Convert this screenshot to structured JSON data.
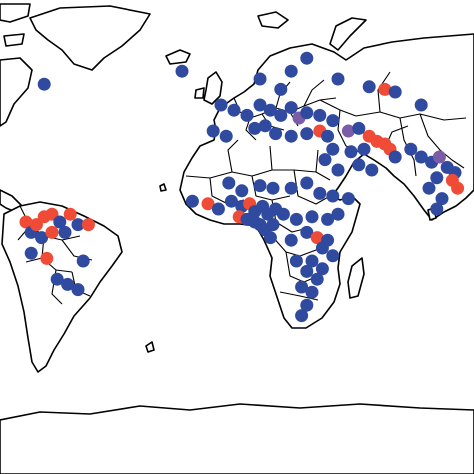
{
  "map": {
    "type": "world-outline-point-map",
    "colors": {
      "background": "#ffffff",
      "outline": "#000000",
      "blue": "#2f4a9e",
      "red": "#ef4b36",
      "purple": "#7a5ca8"
    },
    "points": [
      {
        "lon": -73,
        "lat": 58,
        "color": "blue"
      },
      {
        "lon": -20,
        "lat": 63,
        "color": "blue"
      },
      {
        "lon": 10,
        "lat": 60,
        "color": "blue"
      },
      {
        "lon": 18,
        "lat": 56,
        "color": "blue"
      },
      {
        "lon": 22,
        "lat": 63,
        "color": "blue"
      },
      {
        "lon": 28,
        "lat": 68,
        "color": "blue"
      },
      {
        "lon": 40,
        "lat": 60,
        "color": "blue"
      },
      {
        "lon": 52,
        "lat": 57,
        "color": "blue"
      },
      {
        "lon": 58,
        "lat": 56,
        "color": "red"
      },
      {
        "lon": 62,
        "lat": 55,
        "color": "blue"
      },
      {
        "lon": 72,
        "lat": 50,
        "color": "blue"
      },
      {
        "lon": -5,
        "lat": 50,
        "color": "blue"
      },
      {
        "lon": 0,
        "lat": 48,
        "color": "blue"
      },
      {
        "lon": 5,
        "lat": 46,
        "color": "blue"
      },
      {
        "lon": 10,
        "lat": 50,
        "color": "blue"
      },
      {
        "lon": 14,
        "lat": 48,
        "color": "blue"
      },
      {
        "lon": 18,
        "lat": 46,
        "color": "blue"
      },
      {
        "lon": 22,
        "lat": 49,
        "color": "blue"
      },
      {
        "lon": 25,
        "lat": 45,
        "color": "purple"
      },
      {
        "lon": 28,
        "lat": 47,
        "color": "blue"
      },
      {
        "lon": 33,
        "lat": 46,
        "color": "blue"
      },
      {
        "lon": 38,
        "lat": 44,
        "color": "blue"
      },
      {
        "lon": -8,
        "lat": 40,
        "color": "blue"
      },
      {
        "lon": -3,
        "lat": 38,
        "color": "blue"
      },
      {
        "lon": 8,
        "lat": 41,
        "color": "blue"
      },
      {
        "lon": 12,
        "lat": 42,
        "color": "blue"
      },
      {
        "lon": 16,
        "lat": 39,
        "color": "blue"
      },
      {
        "lon": 22,
        "lat": 38,
        "color": "blue"
      },
      {
        "lon": 28,
        "lat": 39,
        "color": "blue"
      },
      {
        "lon": 33,
        "lat": 40,
        "color": "red"
      },
      {
        "lon": 36,
        "lat": 38,
        "color": "blue"
      },
      {
        "lon": 44,
        "lat": 40,
        "color": "purple"
      },
      {
        "lon": 48,
        "lat": 41,
        "color": "blue"
      },
      {
        "lon": 52,
        "lat": 38,
        "color": "red"
      },
      {
        "lon": 55,
        "lat": 36,
        "color": "red"
      },
      {
        "lon": 58,
        "lat": 35,
        "color": "red"
      },
      {
        "lon": 60,
        "lat": 33,
        "color": "red"
      },
      {
        "lon": 50,
        "lat": 33,
        "color": "blue"
      },
      {
        "lon": 45,
        "lat": 32,
        "color": "blue"
      },
      {
        "lon": 38,
        "lat": 33,
        "color": "blue"
      },
      {
        "lon": 35,
        "lat": 29,
        "color": "blue"
      },
      {
        "lon": 40,
        "lat": 25,
        "color": "blue"
      },
      {
        "lon": 48,
        "lat": 27,
        "color": "blue"
      },
      {
        "lon": 53,
        "lat": 25,
        "color": "blue"
      },
      {
        "lon": 62,
        "lat": 30,
        "color": "blue"
      },
      {
        "lon": 68,
        "lat": 33,
        "color": "blue"
      },
      {
        "lon": 72,
        "lat": 30,
        "color": "blue"
      },
      {
        "lon": 76,
        "lat": 28,
        "color": "blue"
      },
      {
        "lon": 79,
        "lat": 30,
        "color": "purple"
      },
      {
        "lon": 82,
        "lat": 26,
        "color": "blue"
      },
      {
        "lon": 85,
        "lat": 24,
        "color": "blue"
      },
      {
        "lon": 78,
        "lat": 22,
        "color": "blue"
      },
      {
        "lon": 84,
        "lat": 21,
        "color": "red"
      },
      {
        "lon": 86,
        "lat": 18,
        "color": "red"
      },
      {
        "lon": 75,
        "lat": 18,
        "color": "blue"
      },
      {
        "lon": 80,
        "lat": 14,
        "color": "blue"
      },
      {
        "lon": 78,
        "lat": 10,
        "color": "blue"
      },
      {
        "lon": -2,
        "lat": 20,
        "color": "blue"
      },
      {
        "lon": 3,
        "lat": 17,
        "color": "blue"
      },
      {
        "lon": 10,
        "lat": 19,
        "color": "blue"
      },
      {
        "lon": 15,
        "lat": 18,
        "color": "blue"
      },
      {
        "lon": 22,
        "lat": 18,
        "color": "blue"
      },
      {
        "lon": 28,
        "lat": 20,
        "color": "blue"
      },
      {
        "lon": 33,
        "lat": 16,
        "color": "blue"
      },
      {
        "lon": 38,
        "lat": 15,
        "color": "blue"
      },
      {
        "lon": 44,
        "lat": 14,
        "color": "blue"
      },
      {
        "lon": -16,
        "lat": 13,
        "color": "blue"
      },
      {
        "lon": -10,
        "lat": 12,
        "color": "red"
      },
      {
        "lon": -6,
        "lat": 10,
        "color": "blue"
      },
      {
        "lon": -1,
        "lat": 13,
        "color": "blue"
      },
      {
        "lon": 3,
        "lat": 11,
        "color": "blue"
      },
      {
        "lon": 6,
        "lat": 12,
        "color": "red"
      },
      {
        "lon": 8,
        "lat": 9,
        "color": "blue"
      },
      {
        "lon": 11,
        "lat": 11,
        "color": "blue"
      },
      {
        "lon": 13,
        "lat": 8,
        "color": "blue"
      },
      {
        "lon": 16,
        "lat": 10,
        "color": "blue"
      },
      {
        "lon": 19,
        "lat": 8,
        "color": "blue"
      },
      {
        "lon": 2,
        "lat": 7,
        "color": "red"
      },
      {
        "lon": 5,
        "lat": 6,
        "color": "blue"
      },
      {
        "lon": 8,
        "lat": 5,
        "color": "blue"
      },
      {
        "lon": 10,
        "lat": 4,
        "color": "blue"
      },
      {
        "lon": 12,
        "lat": 2,
        "color": "blue"
      },
      {
        "lon": 15,
        "lat": 4,
        "color": "blue"
      },
      {
        "lon": 24,
        "lat": 6,
        "color": "blue"
      },
      {
        "lon": 30,
        "lat": 7,
        "color": "blue"
      },
      {
        "lon": 36,
        "lat": 6,
        "color": "blue"
      },
      {
        "lon": 40,
        "lat": 8,
        "color": "blue"
      },
      {
        "lon": 14,
        "lat": -1,
        "color": "blue"
      },
      {
        "lon": 22,
        "lat": -2,
        "color": "blue"
      },
      {
        "lon": 28,
        "lat": 1,
        "color": "blue"
      },
      {
        "lon": 32,
        "lat": -1,
        "color": "red"
      },
      {
        "lon": 36,
        "lat": -2,
        "color": "blue"
      },
      {
        "lon": 34,
        "lat": -5,
        "color": "blue"
      },
      {
        "lon": 38,
        "lat": -8,
        "color": "blue"
      },
      {
        "lon": 30,
        "lat": -10,
        "color": "blue"
      },
      {
        "lon": 24,
        "lat": -10,
        "color": "blue"
      },
      {
        "lon": 28,
        "lat": -14,
        "color": "blue"
      },
      {
        "lon": 34,
        "lat": -13,
        "color": "blue"
      },
      {
        "lon": 32,
        "lat": -17,
        "color": "blue"
      },
      {
        "lon": 26,
        "lat": -20,
        "color": "blue"
      },
      {
        "lon": 30,
        "lat": -22,
        "color": "blue"
      },
      {
        "lon": 28,
        "lat": -27,
        "color": "blue"
      },
      {
        "lon": 26,
        "lat": -31,
        "color": "blue"
      },
      {
        "lon": -80,
        "lat": 5,
        "color": "red"
      },
      {
        "lon": -78,
        "lat": 1,
        "color": "blue"
      },
      {
        "lon": -76,
        "lat": 4,
        "color": "red"
      },
      {
        "lon": -73,
        "lat": 7,
        "color": "red"
      },
      {
        "lon": -70,
        "lat": 8,
        "color": "red"
      },
      {
        "lon": -67,
        "lat": 5,
        "color": "blue"
      },
      {
        "lon": -63,
        "lat": 8,
        "color": "red"
      },
      {
        "lon": -60,
        "lat": 4,
        "color": "blue"
      },
      {
        "lon": -56,
        "lat": 4,
        "color": "red"
      },
      {
        "lon": -74,
        "lat": -1,
        "color": "blue"
      },
      {
        "lon": -70,
        "lat": 1,
        "color": "red"
      },
      {
        "lon": -65,
        "lat": 1,
        "color": "blue"
      },
      {
        "lon": -78,
        "lat": -7,
        "color": "blue"
      },
      {
        "lon": -72,
        "lat": -9,
        "color": "red"
      },
      {
        "lon": -58,
        "lat": -10,
        "color": "blue"
      },
      {
        "lon": -68,
        "lat": -17,
        "color": "blue"
      },
      {
        "lon": -64,
        "lat": -19,
        "color": "blue"
      },
      {
        "lon": -60,
        "lat": -21,
        "color": "blue"
      }
    ]
  }
}
